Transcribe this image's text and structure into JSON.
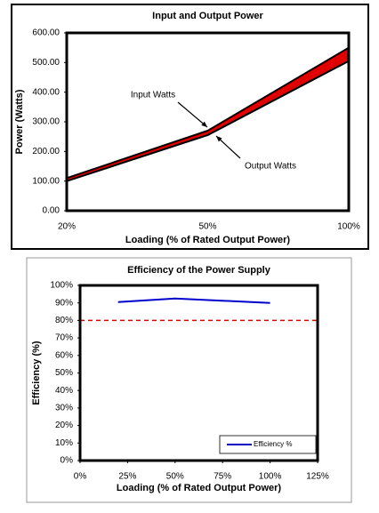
{
  "chart_data": [
    {
      "type": "line",
      "title": "Input and Output Power",
      "x_label": "Loading (% of Rated Output Power)",
      "y_label": "Power (Watts)",
      "categories": [
        "20%",
        "50%",
        "100%"
      ],
      "series": [
        {
          "name": "Input Watts",
          "color": "#000000",
          "values": [
            110,
            270,
            550
          ]
        },
        {
          "name": "Output Watts",
          "color": "#000000",
          "values": [
            100,
            255,
            505
          ]
        }
      ],
      "fill_between": "#e00000",
      "annotations": [
        "Input Watts",
        "Output Watts"
      ],
      "ylim": [
        0,
        600
      ],
      "yticks": [
        {
          "value": 0,
          "label": "0.00"
        },
        {
          "value": 100,
          "label": "100.00"
        },
        {
          "value": 200,
          "label": "200.00"
        },
        {
          "value": 300,
          "label": "300.00"
        },
        {
          "value": 400,
          "label": "400.00"
        },
        {
          "value": 500,
          "label": "500.00"
        },
        {
          "value": 600,
          "label": "600.00"
        }
      ],
      "grid": false
    },
    {
      "type": "line",
      "title": "Efficiency of the Power Supply",
      "x_label": "Loading (% of Rated Output Power)",
      "y_label": "Efficiency (%)",
      "x": [
        20,
        50,
        100
      ],
      "series": [
        {
          "name": "Efficiency %",
          "color": "#0000cc",
          "values": [
            90.5,
            92.5,
            90
          ]
        }
      ],
      "hlines": [
        {
          "value": 80,
          "color": "#e00000"
        }
      ],
      "legend": "lower right",
      "xlim": [
        0,
        125
      ],
      "xticks": [
        {
          "value": 0,
          "label": "0%"
        },
        {
          "value": 25,
          "label": "25%"
        },
        {
          "value": 50,
          "label": "50%"
        },
        {
          "value": 75,
          "label": "75%"
        },
        {
          "value": 100,
          "label": "100%"
        },
        {
          "value": 125,
          "label": "125%"
        }
      ],
      "ylim": [
        0,
        100
      ],
      "yticks": [
        {
          "value": 0,
          "label": "0%"
        },
        {
          "value": 10,
          "label": "10%"
        },
        {
          "value": 20,
          "label": "20%"
        },
        {
          "value": 30,
          "label": "30%"
        },
        {
          "value": 40,
          "label": "40%"
        },
        {
          "value": 50,
          "label": "50%"
        },
        {
          "value": 60,
          "label": "60%"
        },
        {
          "value": 70,
          "label": "70%"
        },
        {
          "value": 80,
          "label": "80%"
        },
        {
          "value": 90,
          "label": "90%"
        },
        {
          "value": 100,
          "label": "100%"
        }
      ],
      "grid": false
    }
  ]
}
